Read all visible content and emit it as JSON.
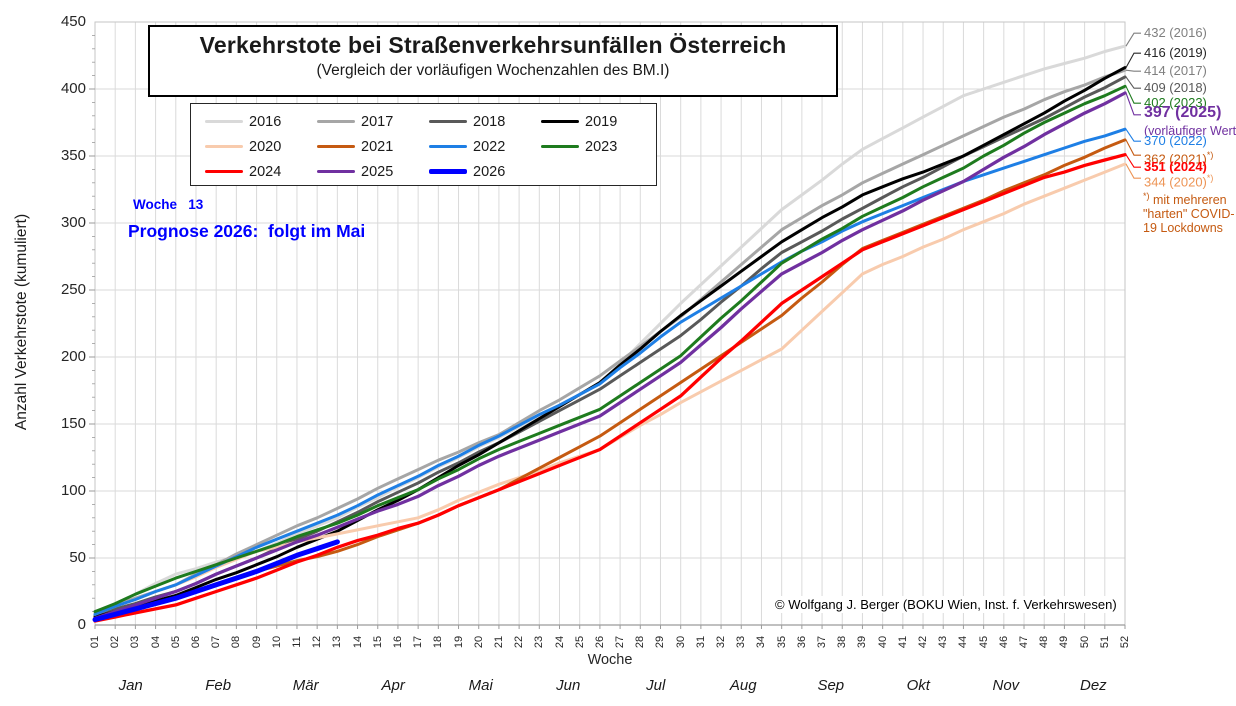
{
  "title": {
    "text": "Verkehrstote bei Straßenverkehrsunfällen Österreich",
    "subtitle": "(Vergleich der vorläufigen Wochenzahlen des BM.I)"
  },
  "annotations": {
    "week": "Woche   13",
    "prognose": "Prognose 2026:  folgt im Mai",
    "color": "#0000FF"
  },
  "copyright": "© Wolfgang J. Berger (BOKU Wien, Inst. f. Verkehrswesen)",
  "footnote": {
    "sup": "*)",
    "lines": [
      "mit mehreren",
      "\"harten\" COVID-",
      "19 Lockdowns"
    ],
    "color": "#C55A11"
  },
  "right_labels": [
    {
      "text": "432 (2016)",
      "year": "2016",
      "color": "#7F7F7F"
    },
    {
      "text": "416 (2019)",
      "year": "2019",
      "color": "#262626"
    },
    {
      "text": "414 (2017)",
      "year": "2017",
      "color": "#7F7F7F"
    },
    {
      "text": "409 (2018)",
      "year": "2018",
      "color": "#595959"
    },
    {
      "text": "402 (2023)",
      "year": "2023",
      "color": "#1E7B1E"
    },
    {
      "text": "397 (2025)",
      "year": "2025",
      "color": "#7030A0",
      "bold": true,
      "size": 16
    },
    {
      "text": "(vorläufiger Wert)",
      "color": "#7030A0",
      "size": 12.5
    },
    {
      "text": "370 (2022)",
      "year": "2022",
      "color": "#1E7FE5"
    },
    {
      "text": "362 (2021)",
      "year": "2021",
      "color": "#C55A11",
      "sup": "*)"
    },
    {
      "text": "351 (2024)",
      "year": "2024",
      "color": "#FF0000",
      "bold": true
    },
    {
      "text": "344 (2020)",
      "year": "2020",
      "color": "#ED9455",
      "sup": "*)"
    }
  ],
  "colors": {
    "grid": "#DADADA",
    "border": "#C6C6C6",
    "axis": "#9B9B9B"
  },
  "chart_data": {
    "type": "line",
    "title": "Verkehrstote bei Straßenverkehrsunfällen Österreich",
    "subtitle": "(Vergleich der vorläufigen Wochenzahlen des BM.I)",
    "xlabel": "Woche",
    "ylabel": "Anzahl Verkehrstote (kumuliert)",
    "ylim": [
      0,
      450
    ],
    "y_ticks": [
      0,
      50,
      100,
      150,
      200,
      250,
      300,
      350,
      400,
      450
    ],
    "grid": true,
    "legend_position": "top-left",
    "x_tick_labels": [
      "01",
      "02",
      "03",
      "04",
      "05",
      "06",
      "07",
      "08",
      "09",
      "10",
      "11",
      "12",
      "13",
      "14",
      "15",
      "16",
      "17",
      "18",
      "19",
      "20",
      "21",
      "22",
      "23",
      "24",
      "25",
      "26",
      "27",
      "28",
      "29",
      "30",
      "31",
      "32",
      "33",
      "34",
      "35",
      "36",
      "37",
      "38",
      "39",
      "40",
      "41",
      "42",
      "43",
      "44",
      "45",
      "46",
      "47",
      "48",
      "49",
      "50",
      "51",
      "52"
    ],
    "month_labels": [
      "Jan",
      "Feb",
      "Mär",
      "Apr",
      "Mai",
      "Jun",
      "Jul",
      "Aug",
      "Sep",
      "Okt",
      "Nov",
      "Dez"
    ],
    "series": [
      {
        "name": "2016",
        "color": "#D9D9D9",
        "width": 3,
        "values": [
          8,
          16,
          23,
          31,
          38,
          42,
          47,
          51,
          55,
          61,
          68,
          74,
          80,
          88,
          95,
          103,
          110,
          118,
          125,
          133,
          140,
          148,
          156,
          164,
          172,
          180,
          195,
          210,
          225,
          240,
          254,
          268,
          282,
          296,
          310,
          321,
          332,
          344,
          355,
          363,
          371,
          379,
          387,
          395,
          400,
          405,
          410,
          415,
          419,
          423,
          428,
          432
        ]
      },
      {
        "name": "2017",
        "color": "#A6A6A6",
        "width": 3,
        "values": [
          10,
          15,
          20,
          25,
          30,
          38,
          45,
          53,
          60,
          67,
          74,
          80,
          87,
          94,
          102,
          109,
          116,
          123,
          129,
          136,
          142,
          151,
          160,
          168,
          177,
          186,
          197,
          208,
          219,
          230,
          243,
          256,
          269,
          282,
          295,
          304,
          313,
          321,
          330,
          337,
          344,
          351,
          358,
          365,
          372,
          379,
          385,
          392,
          398,
          403,
          409,
          414
        ]
      },
      {
        "name": "2018",
        "color": "#595959",
        "width": 3,
        "values": [
          7,
          12,
          16,
          21,
          25,
          31,
          38,
          44,
          50,
          57,
          64,
          70,
          77,
          84,
          92,
          99,
          106,
          114,
          121,
          129,
          136,
          144,
          152,
          160,
          168,
          176,
          186,
          196,
          206,
          216,
          228,
          241,
          253,
          266,
          278,
          286,
          294,
          303,
          311,
          319,
          327,
          334,
          342,
          350,
          357,
          364,
          371,
          378,
          386,
          394,
          401,
          409
        ]
      },
      {
        "name": "2019",
        "color": "#000000",
        "width": 3,
        "values": [
          6,
          10,
          14,
          18,
          22,
          28,
          34,
          39,
          45,
          51,
          58,
          64,
          70,
          78,
          86,
          93,
          101,
          110,
          119,
          127,
          136,
          145,
          154,
          163,
          172,
          181,
          194,
          206,
          219,
          231,
          242,
          253,
          264,
          275,
          286,
          295,
          304,
          312,
          321,
          327,
          333,
          338,
          344,
          350,
          358,
          366,
          374,
          382,
          391,
          399,
          408,
          416
        ]
      },
      {
        "name": "2020",
        "color": "#F8CBAD",
        "width": 3,
        "values": [
          8,
          14,
          19,
          25,
          30,
          36,
          43,
          49,
          55,
          58,
          62,
          65,
          68,
          71,
          74,
          77,
          80,
          86,
          93,
          99,
          105,
          110,
          115,
          121,
          126,
          131,
          140,
          149,
          157,
          166,
          174,
          182,
          190,
          198,
          206,
          220,
          234,
          248,
          262,
          269,
          275,
          282,
          288,
          295,
          301,
          307,
          314,
          320,
          326,
          332,
          338,
          344
        ]
      },
      {
        "name": "2021",
        "color": "#C55A11",
        "width": 3,
        "values": [
          5,
          9,
          13,
          16,
          20,
          25,
          30,
          35,
          40,
          44,
          48,
          51,
          55,
          60,
          66,
          71,
          76,
          82,
          89,
          95,
          101,
          109,
          117,
          125,
          133,
          141,
          151,
          161,
          171,
          181,
          191,
          201,
          211,
          221,
          231,
          244,
          256,
          269,
          281,
          287,
          293,
          299,
          305,
          311,
          317,
          324,
          330,
          336,
          343,
          349,
          356,
          362
        ]
      },
      {
        "name": "2022",
        "color": "#1E7FE5",
        "width": 3,
        "values": [
          8,
          14,
          19,
          25,
          30,
          37,
          44,
          51,
          58,
          64,
          70,
          76,
          82,
          89,
          97,
          104,
          111,
          119,
          126,
          134,
          141,
          149,
          157,
          164,
          172,
          180,
          192,
          203,
          215,
          226,
          235,
          244,
          253,
          262,
          271,
          279,
          286,
          294,
          301,
          307,
          313,
          319,
          325,
          331,
          336,
          341,
          346,
          351,
          356,
          361,
          365,
          370
        ]
      },
      {
        "name": "2023",
        "color": "#1E7B1E",
        "width": 3,
        "values": [
          10,
          16,
          23,
          29,
          35,
          40,
          45,
          50,
          55,
          60,
          66,
          71,
          76,
          82,
          89,
          95,
          101,
          109,
          116,
          124,
          131,
          137,
          143,
          149,
          155,
          161,
          171,
          181,
          191,
          201,
          215,
          229,
          242,
          256,
          270,
          279,
          288,
          296,
          305,
          312,
          319,
          327,
          334,
          341,
          350,
          358,
          367,
          375,
          382,
          389,
          395,
          402
        ]
      },
      {
        "name": "2024",
        "color": "#FF0000",
        "width": 3.25,
        "values": [
          3,
          6,
          9,
          12,
          15,
          20,
          25,
          30,
          35,
          41,
          47,
          52,
          58,
          63,
          67,
          72,
          76,
          82,
          89,
          95,
          101,
          107,
          113,
          119,
          125,
          131,
          141,
          151,
          161,
          171,
          185,
          199,
          212,
          226,
          240,
          250,
          260,
          270,
          280,
          286,
          292,
          298,
          304,
          310,
          316,
          322,
          328,
          334,
          338,
          343,
          347,
          351
        ]
      },
      {
        "name": "2025",
        "color": "#7030A0",
        "width": 3.25,
        "values": [
          5,
          10,
          15,
          20,
          25,
          31,
          38,
          44,
          50,
          56,
          62,
          67,
          73,
          79,
          85,
          90,
          96,
          104,
          111,
          119,
          126,
          132,
          138,
          144,
          150,
          156,
          166,
          176,
          186,
          196,
          209,
          222,
          236,
          249,
          262,
          270,
          278,
          287,
          295,
          302,
          309,
          317,
          324,
          331,
          340,
          349,
          357,
          366,
          374,
          382,
          389,
          397
        ]
      },
      {
        "name": "2026",
        "color": "#0000FF",
        "width": 5,
        "values": [
          4,
          8,
          12,
          16,
          20,
          25,
          30,
          35,
          40,
          46,
          52,
          57,
          62
        ]
      }
    ]
  }
}
